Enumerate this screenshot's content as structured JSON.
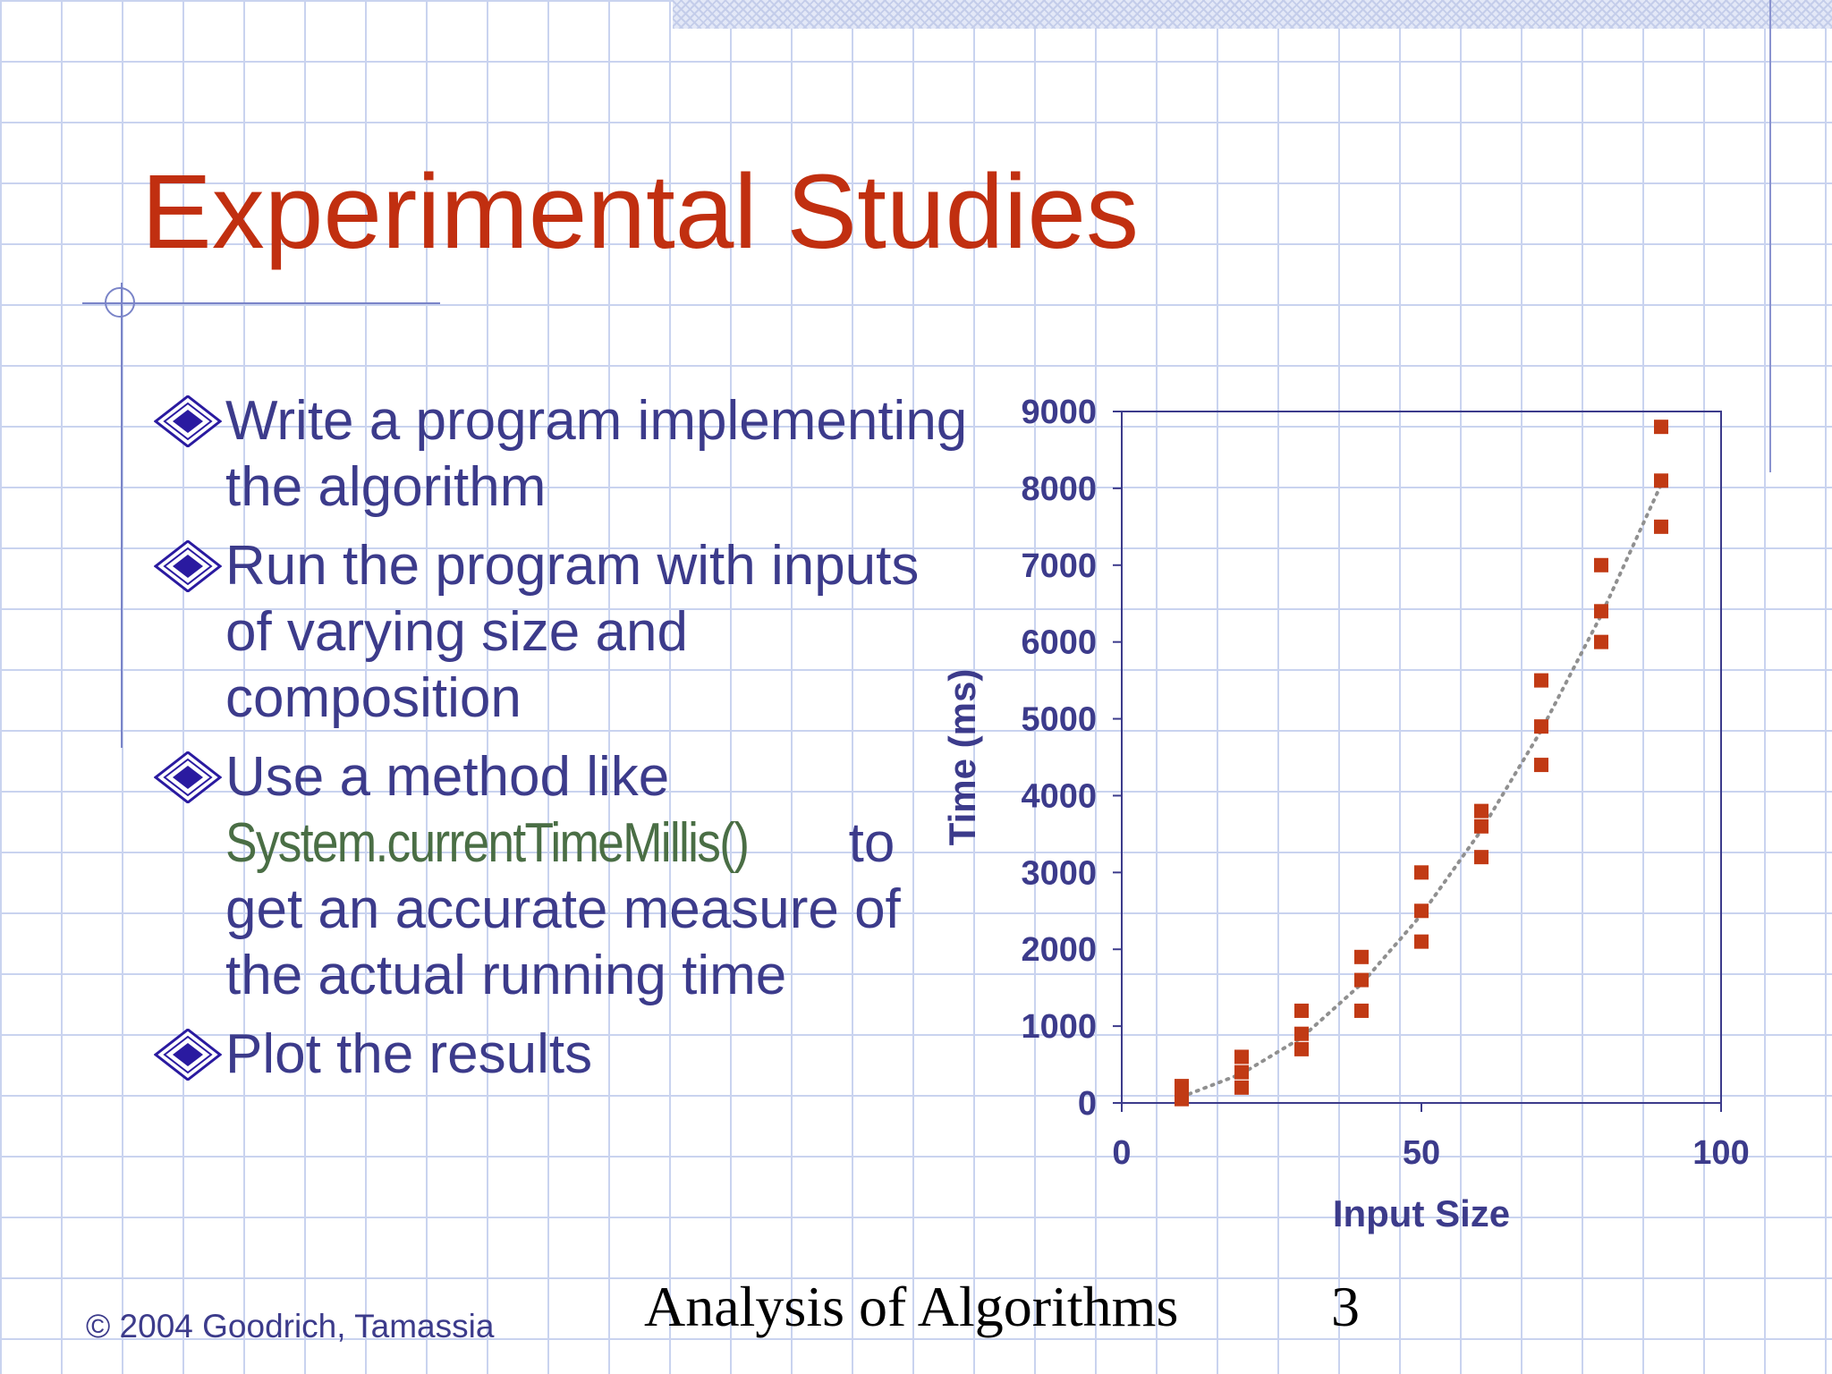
{
  "slide": {
    "title": "Experimental Studies",
    "bullets": [
      {
        "text": "Write a program implementing the algorithm"
      },
      {
        "text": "Run the program with inputs of varying size and composition"
      },
      {
        "before": "Use a method like",
        "code": "System.currentTimeMillis()",
        "after": "to get an accurate measure of the actual running time"
      },
      {
        "text": "Plot the results"
      }
    ],
    "footer": {
      "copyright": "© 2004 Goodrich, Tamassia",
      "title": "Analysis of Algorithms",
      "page": "3"
    },
    "colors": {
      "title": "#c12f10",
      "text": "#3c3b8b",
      "code": "#4a6e45",
      "marker": "#c13a14",
      "bullet": "#2a1aa0"
    }
  },
  "chart_data": {
    "type": "scatter",
    "xlabel": "Input Size",
    "ylabel": "Time (ms)",
    "xlim": [
      0,
      100
    ],
    "ylim": [
      0,
      9000
    ],
    "xticks": [
      0,
      50,
      100
    ],
    "yticks": [
      0,
      1000,
      2000,
      3000,
      4000,
      5000,
      6000,
      7000,
      8000,
      9000
    ],
    "grid": false,
    "points": [
      {
        "x": 10,
        "y": 50
      },
      {
        "x": 10,
        "y": 120
      },
      {
        "x": 10,
        "y": 220
      },
      {
        "x": 20,
        "y": 200
      },
      {
        "x": 20,
        "y": 400
      },
      {
        "x": 20,
        "y": 600
      },
      {
        "x": 30,
        "y": 700
      },
      {
        "x": 30,
        "y": 900
      },
      {
        "x": 30,
        "y": 1200
      },
      {
        "x": 40,
        "y": 1200
      },
      {
        "x": 40,
        "y": 1600
      },
      {
        "x": 40,
        "y": 1900
      },
      {
        "x": 50,
        "y": 2100
      },
      {
        "x": 50,
        "y": 2500
      },
      {
        "x": 50,
        "y": 3000
      },
      {
        "x": 60,
        "y": 3200
      },
      {
        "x": 60,
        "y": 3600
      },
      {
        "x": 60,
        "y": 3800
      },
      {
        "x": 70,
        "y": 4400
      },
      {
        "x": 70,
        "y": 4900
      },
      {
        "x": 70,
        "y": 5500
      },
      {
        "x": 80,
        "y": 6000
      },
      {
        "x": 80,
        "y": 6400
      },
      {
        "x": 80,
        "y": 7000
      },
      {
        "x": 90,
        "y": 7500
      },
      {
        "x": 90,
        "y": 8100
      },
      {
        "x": 90,
        "y": 8800
      }
    ],
    "trendline": {
      "style": "dotted",
      "color": "#909090",
      "x": [
        10,
        20,
        30,
        40,
        50,
        60,
        70,
        80,
        90
      ],
      "y": [
        80,
        380,
        850,
        1550,
        2450,
        3550,
        4850,
        6350,
        8050
      ]
    }
  }
}
